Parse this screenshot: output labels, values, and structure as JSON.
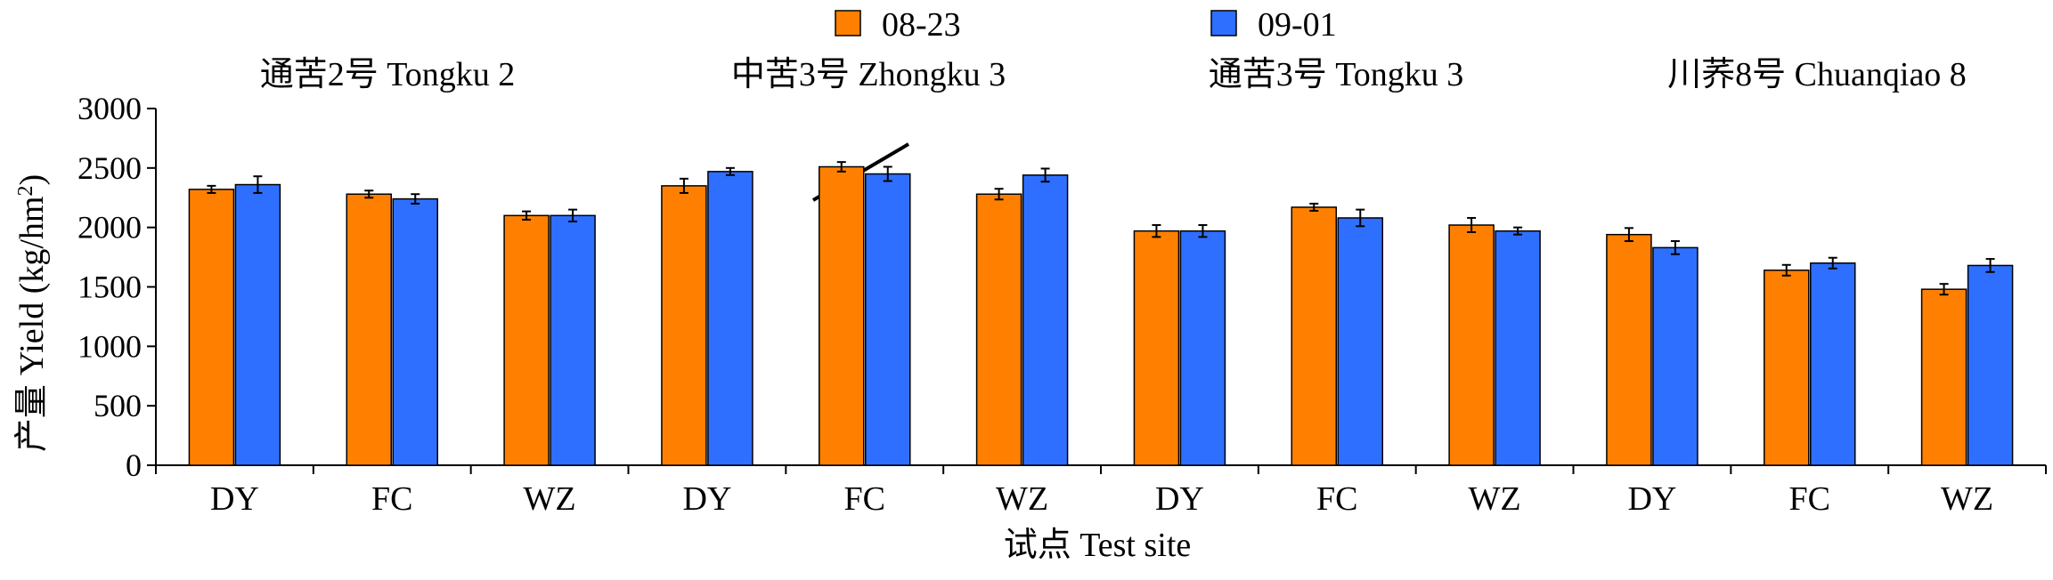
{
  "chart_data": {
    "type": "bar",
    "group_labels": [
      "通苦2号 Tongku 2",
      "中苦3号 Zhongku 3",
      "通苦3号 Tongku 3",
      "川荞8号 Chuanqiao 8"
    ],
    "categories": [
      "DY",
      "FC",
      "WZ",
      "DY",
      "FC",
      "WZ",
      "DY",
      "FC",
      "WZ",
      "DY",
      "FC",
      "WZ"
    ],
    "series": [
      {
        "name": "08-23",
        "color": "#FF8000",
        "values": [
          2320,
          2280,
          2100,
          2350,
          2510,
          2280,
          1970,
          2170,
          2020,
          1940,
          1640,
          1480
        ],
        "errors": [
          30,
          30,
          35,
          60,
          40,
          45,
          50,
          30,
          60,
          55,
          45,
          45
        ]
      },
      {
        "name": "09-01",
        "color": "#2F6FFF",
        "values": [
          2360,
          2240,
          2100,
          2470,
          2450,
          2440,
          1970,
          2080,
          1970,
          1830,
          1700,
          1680
        ],
        "errors": [
          70,
          40,
          50,
          30,
          60,
          55,
          50,
          70,
          30,
          55,
          45,
          55
        ]
      }
    ],
    "ylabel_cn": "产量",
    "ylabel_en": "Yield (kg/hm",
    "ylabel_sup": "2",
    "ylabel_close": ")",
    "xlabel": "试点 Test site",
    "ylim": [
      0,
      3000
    ],
    "yticks": [
      0,
      500,
      1000,
      1500,
      2000,
      2500,
      3000
    ],
    "grid": false,
    "legend_position": "top-center"
  }
}
